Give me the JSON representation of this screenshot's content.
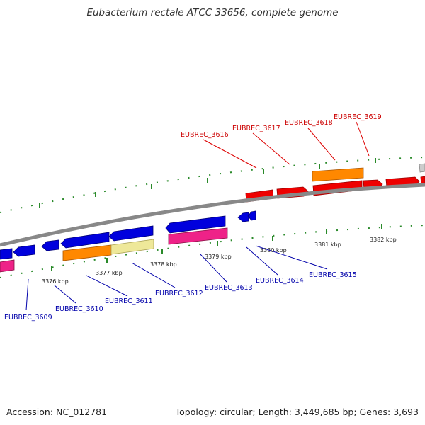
{
  "title": "Eubacterium rectale ATCC 33656, complete genome",
  "footer": {
    "accession": "Accession: NC_012781",
    "summary": "Topology: circular; Length: 3,449,685 bp; Genes: 3,693"
  },
  "colors": {
    "forward_label": "#cc0000",
    "reverse_label": "#0000aa",
    "forward_gene": "#ee0000",
    "reverse_gene": "#0000dd",
    "rRNA_gene": "#ff8800",
    "pink_gene": "#ee2288",
    "pale_gene": "#eee899",
    "grey_gene": "#cccccc",
    "backbone": "#888888",
    "tick_marks": "#2a8a2a"
  },
  "ticks": [
    "3376 kbp",
    "3377 kbp",
    "3378 kbp",
    "3379 kbp",
    "3380 kbp",
    "3381 kbp",
    "3382 kbp"
  ],
  "forward_labels": [
    "EUBREC_3616",
    "EUBREC_3617",
    "EUBREC_3618",
    "EUBREC_3619"
  ],
  "reverse_labels": [
    "EUBREC_3609",
    "EUBREC_3610",
    "EUBREC_3611",
    "EUBREC_3612",
    "EUBREC_3613",
    "EUBREC_3614",
    "EUBREC_3615"
  ]
}
